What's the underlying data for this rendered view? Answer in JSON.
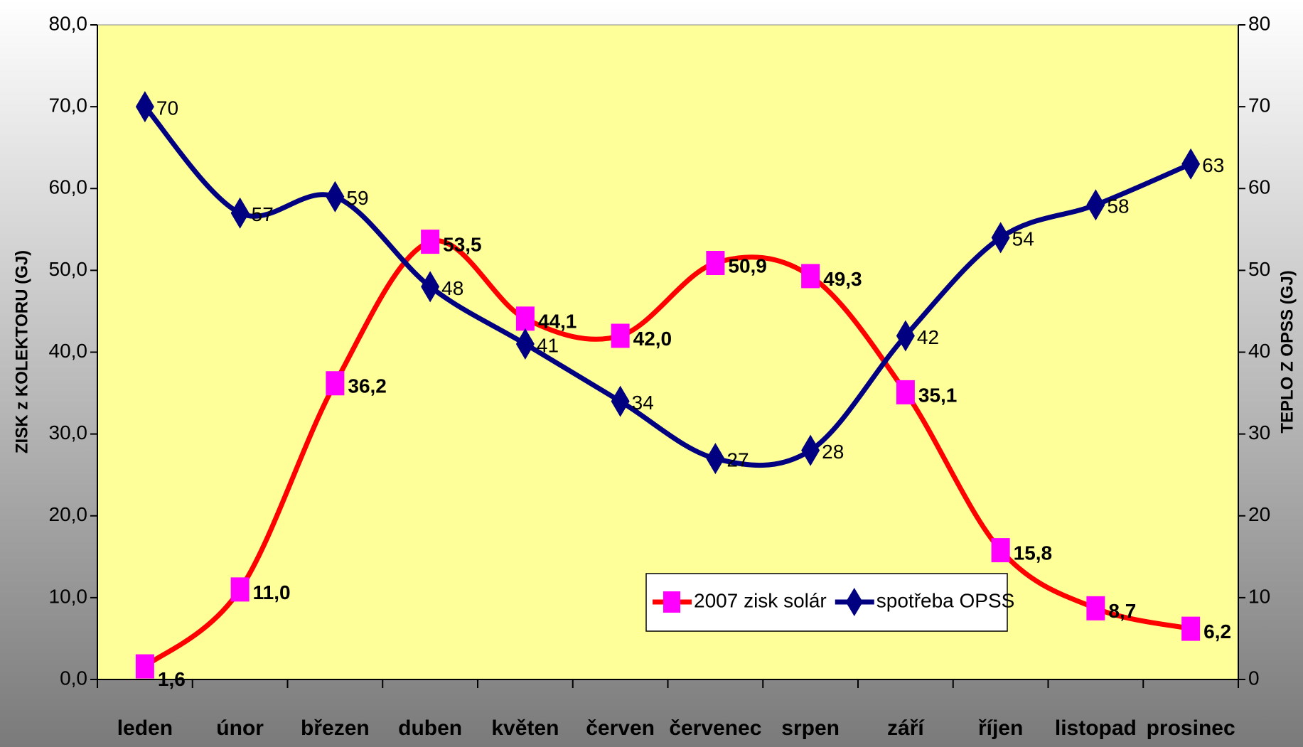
{
  "chart_data": {
    "type": "line",
    "y_label": "ZISK z KOLEKTORU (GJ)",
    "y2_label": "TEPLO Z OPSS (GJ)",
    "categories": [
      "leden",
      "únor",
      "březen",
      "duben",
      "květen",
      "červen",
      "červenec",
      "srpen",
      "září",
      "říjen",
      "listopad",
      "prosinec"
    ],
    "series": [
      {
        "name": "2007 zisk solár",
        "color": "#ff0000",
        "marker_color": "#ff00ff",
        "values": [
          1.6,
          11.0,
          36.2,
          53.5,
          44.1,
          42.0,
          50.9,
          49.3,
          35.1,
          15.8,
          8.7,
          6.2
        ],
        "value_labels": [
          "1,6",
          "11,0",
          "36,2",
          "53,5",
          "44,1",
          "42,0",
          "50,9",
          "49,3",
          "35,1",
          "15,8",
          "8,7",
          "6,2"
        ]
      },
      {
        "name": "spotřeba OPSS",
        "color": "#000080",
        "marker_color": "#000080",
        "axis": "y2",
        "values": [
          70,
          57,
          59,
          48,
          41,
          34,
          27,
          28,
          42,
          54,
          58,
          63
        ]
      }
    ],
    "ylim": [
      0,
      80
    ],
    "yticks": [
      {
        "value": 0,
        "label": "0,0"
      },
      {
        "value": 10,
        "label": "10,0"
      },
      {
        "value": 20,
        "label": "20,0"
      },
      {
        "value": 30,
        "label": "30,0"
      },
      {
        "value": 40,
        "label": "40,0"
      },
      {
        "value": 50,
        "label": "50,0"
      },
      {
        "value": 60,
        "label": "60,0"
      },
      {
        "value": 70,
        "label": "70,0"
      },
      {
        "value": 80,
        "label": "80,0"
      }
    ],
    "y2lim": [
      0,
      80
    ],
    "y2ticks": [
      0,
      10,
      20,
      30,
      40,
      50,
      60,
      70,
      80
    ],
    "smooth": true,
    "grid": false
  }
}
